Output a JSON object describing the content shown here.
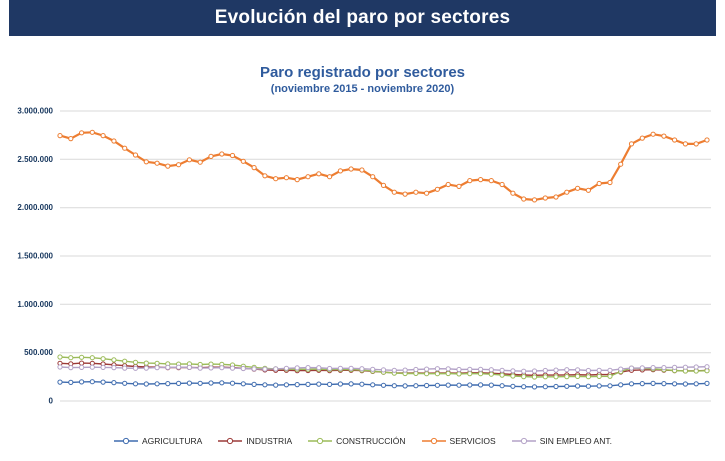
{
  "header": {
    "title": "Evolución del paro por sectores"
  },
  "chart_data": {
    "type": "line",
    "title": "Paro registrado por sectores",
    "subtitle": "(noviembre 2015 - noviembre 2020)",
    "x_start": "noviembre 2015",
    "x_end": "noviembre 2020",
    "x_frequency": "monthly",
    "n_points": 61,
    "ylim": [
      0,
      3000000
    ],
    "grid": true,
    "legend_position": "bottom",
    "y_ticks": [
      {
        "value": 0,
        "label": "0"
      },
      {
        "value": 500000,
        "label": "500.000"
      },
      {
        "value": 1000000,
        "label": "1.000.000"
      },
      {
        "value": 1500000,
        "label": "1.500.000"
      },
      {
        "value": 2000000,
        "label": "2.000.000"
      },
      {
        "value": 2500000,
        "label": "2.500.000"
      },
      {
        "value": 3000000,
        "label": "3.000.000"
      }
    ],
    "series": [
      {
        "id": "agricultura",
        "name": "AGRICULTURA",
        "color": "#3F6CAF",
        "line_width": 1.4,
        "marker": "circle",
        "values": [
          195000,
          192000,
          198000,
          200000,
          196000,
          190000,
          183000,
          178000,
          176000,
          178000,
          180000,
          182000,
          185000,
          183000,
          186000,
          188000,
          184000,
          178000,
          172000,
          168000,
          165000,
          168000,
          170000,
          172000,
          175000,
          172000,
          176000,
          177000,
          174000,
          168000,
          162000,
          158000,
          156000,
          158000,
          160000,
          162000,
          165000,
          163000,
          166000,
          167000,
          164000,
          158000,
          152000,
          148000,
          146000,
          148000,
          150000,
          152000,
          155000,
          153000,
          156000,
          157000,
          168000,
          178000,
          180000,
          182000,
          180000,
          178000,
          176000,
          178000,
          182000
        ]
      },
      {
        "id": "industria",
        "name": "INDUSTRIA",
        "color": "#9C3A38",
        "line_width": 1.4,
        "marker": "circle",
        "values": [
          390000,
          385000,
          392000,
          390000,
          383000,
          375000,
          365000,
          357000,
          352000,
          350000,
          346000,
          345000,
          348000,
          344000,
          350000,
          350000,
          346000,
          338000,
          330000,
          322000,
          318000,
          318000,
          315000,
          316000,
          318000,
          314000,
          318000,
          318000,
          314000,
          306000,
          298000,
          292000,
          289000,
          290000,
          288000,
          289000,
          291000,
          288000,
          292000,
          292000,
          288000,
          281000,
          274000,
          269000,
          266000,
          268000,
          268000,
          270000,
          272000,
          269000,
          273000,
          273000,
          300000,
          318000,
          322000,
          324000,
          320000,
          315000,
          311000,
          312000,
          316000
        ]
      },
      {
        "id": "construccion",
        "name": "CONSTRUCCIÓN",
        "color": "#9BBB59",
        "line_width": 1.4,
        "marker": "circle",
        "values": [
          455000,
          448000,
          452000,
          448000,
          438000,
          425000,
          412000,
          400000,
          392000,
          390000,
          384000,
          382000,
          384000,
          378000,
          382000,
          380000,
          372000,
          360000,
          348000,
          338000,
          332000,
          332000,
          328000,
          328000,
          330000,
          324000,
          327000,
          326000,
          320000,
          309000,
          298000,
          289000,
          284000,
          285000,
          282000,
          282000,
          284000,
          280000,
          283000,
          282000,
          277000,
          268000,
          259000,
          252000,
          248000,
          250000,
          250000,
          252000,
          254000,
          251000,
          255000,
          256000,
          305000,
          340000,
          338000,
          332000,
          324000,
          316000,
          310000,
          310000,
          313000
        ]
      },
      {
        "id": "servicios",
        "name": "SERVICIOS",
        "color": "#ED7D31",
        "line_width": 2.2,
        "marker": "circle",
        "values": [
          2745000,
          2715000,
          2775000,
          2780000,
          2745000,
          2690000,
          2615000,
          2545000,
          2475000,
          2460000,
          2430000,
          2445000,
          2495000,
          2470000,
          2530000,
          2555000,
          2540000,
          2480000,
          2415000,
          2330000,
          2300000,
          2310000,
          2290000,
          2320000,
          2350000,
          2320000,
          2380000,
          2400000,
          2390000,
          2320000,
          2230000,
          2160000,
          2140000,
          2160000,
          2150000,
          2190000,
          2240000,
          2220000,
          2280000,
          2290000,
          2280000,
          2240000,
          2150000,
          2090000,
          2080000,
          2100000,
          2110000,
          2160000,
          2200000,
          2180000,
          2250000,
          2260000,
          2450000,
          2660000,
          2720000,
          2760000,
          2740000,
          2700000,
          2660000,
          2660000,
          2700000
        ]
      },
      {
        "id": "sin-empleo-ant",
        "name": "SIN EMPLEO ANT.",
        "color": "#B3A2C7",
        "line_width": 1.4,
        "marker": "circle",
        "values": [
          352000,
          345000,
          348000,
          350000,
          348000,
          345000,
          340000,
          338000,
          340000,
          345000,
          348000,
          350000,
          348000,
          340000,
          342000,
          344000,
          340000,
          336000,
          332000,
          330000,
          332000,
          338000,
          342000,
          345000,
          344000,
          336000,
          338000,
          338000,
          334000,
          328000,
          322000,
          318000,
          320000,
          326000,
          330000,
          334000,
          333000,
          326000,
          328000,
          328000,
          324000,
          318000,
          312000,
          308000,
          310000,
          316000,
          320000,
          324000,
          323000,
          316000,
          318000,
          318000,
          330000,
          340000,
          342000,
          345000,
          346000,
          348000,
          350000,
          352000,
          355000
        ]
      }
    ]
  }
}
